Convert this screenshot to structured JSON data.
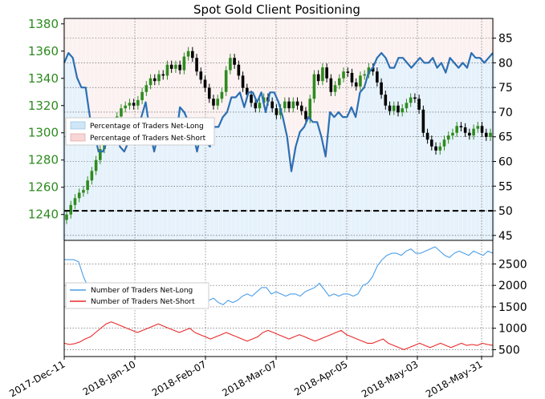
{
  "chart_data": [
    {
      "type": "candlestick",
      "title": "Spot Gold Client Positioning",
      "left_axis": {
        "ticks": [
          1240,
          1260,
          1280,
          1300,
          1320,
          1340,
          1360,
          1380
        ],
        "range": [
          1221,
          1384
        ]
      },
      "right_axis": {
        "ticks": [
          45,
          50,
          55,
          60,
          65,
          70,
          75,
          80,
          85
        ],
        "range": [
          44,
          89
        ]
      },
      "x_ticks": [
        "2017-Dec-11",
        "2018-Jan-10",
        "2018-Feb-07",
        "2018-Mar-07",
        "2018-Apr-05",
        "2018-May-03",
        "2018-May-31"
      ],
      "legend": [
        "Percentage of Traders Net-Long",
        "Percentage of Traders Net-Short"
      ],
      "reference_line": 50,
      "price_close": [
        1240,
        1247,
        1252,
        1256,
        1258,
        1265,
        1272,
        1280,
        1288,
        1295,
        1302,
        1308,
        1312,
        1318,
        1320,
        1322,
        1320,
        1324,
        1330,
        1335,
        1340,
        1338,
        1343,
        1342,
        1350,
        1347,
        1350,
        1346,
        1356,
        1360,
        1355,
        1345,
        1339,
        1333,
        1325,
        1320,
        1325,
        1330,
        1346,
        1355,
        1350,
        1342,
        1333,
        1328,
        1322,
        1318,
        1322,
        1326,
        1323,
        1318,
        1313,
        1318,
        1323,
        1318,
        1323,
        1320,
        1316,
        1310,
        1325,
        1343,
        1338,
        1348,
        1340,
        1330,
        1335,
        1340,
        1345,
        1344,
        1337,
        1334,
        1342,
        1343,
        1348,
        1345,
        1337,
        1328,
        1320,
        1316,
        1320,
        1315,
        1318,
        1322,
        1326,
        1325,
        1317,
        1300,
        1295,
        1290,
        1287,
        1290,
        1295,
        1298,
        1300,
        1305,
        1304,
        1300,
        1298,
        1303,
        1305,
        1300,
        1297,
        1300
      ],
      "pct_net_long": [
        80,
        82,
        81,
        77,
        75,
        75,
        69,
        66,
        62,
        62,
        64,
        68,
        68,
        63,
        62,
        64,
        66,
        67,
        69,
        72,
        66,
        62,
        66,
        65,
        65,
        64,
        64,
        71,
        70,
        68,
        66,
        62,
        66,
        64,
        63,
        67,
        67,
        69,
        70,
        73,
        73,
        74,
        71,
        74,
        74,
        72,
        74,
        70,
        74,
        74,
        72,
        69,
        65,
        58,
        63,
        66,
        67,
        69,
        68,
        68,
        65,
        61,
        70,
        69,
        70,
        69,
        69,
        71,
        69,
        74,
        75,
        78,
        79,
        81,
        82,
        81,
        79,
        79,
        81,
        81,
        80,
        79,
        80,
        81,
        80,
        80,
        81,
        79,
        80,
        78,
        81,
        80,
        79,
        80,
        79,
        82,
        81,
        81,
        80,
        81,
        82
      ],
      "traders_net_long": [
        2600,
        2600,
        2600,
        2550,
        2200,
        1950,
        1800,
        1700,
        1650,
        1600,
        1600,
        1650,
        1600,
        1700,
        1800,
        1750,
        1700,
        1650,
        1600,
        1550,
        1650,
        1700,
        1650,
        1600,
        1600,
        1650,
        1600,
        1650,
        1600,
        1550,
        1650,
        1700,
        1600,
        1550,
        1650,
        1600,
        1650,
        1750,
        1800,
        1750,
        1850,
        1950,
        1950,
        1800,
        1850,
        1800,
        1750,
        1800,
        1800,
        1750,
        1850,
        1900,
        1950,
        2050,
        1900,
        1750,
        1800,
        1750,
        1800,
        1800,
        1750,
        1800,
        2000,
        2050,
        2200,
        2450,
        2600,
        2700,
        2750,
        2750,
        2700,
        2800,
        2850,
        2750,
        2750,
        2800,
        2850,
        2900,
        2800,
        2700,
        2650,
        2750,
        2800,
        2750,
        2700,
        2800,
        2750,
        2700,
        2800,
        2750
      ],
      "traders_net_short": [
        650,
        620,
        640,
        680,
        750,
        800,
        900,
        1000,
        1100,
        1150,
        1100,
        1050,
        1000,
        950,
        900,
        950,
        1000,
        1050,
        1100,
        1050,
        1000,
        950,
        900,
        950,
        1000,
        900,
        850,
        800,
        750,
        800,
        850,
        900,
        850,
        800,
        750,
        700,
        750,
        800,
        900,
        950,
        900,
        850,
        800,
        750,
        800,
        850,
        800,
        750,
        700,
        750,
        800,
        850,
        900,
        950,
        850,
        800,
        750,
        700,
        650,
        650,
        700,
        750,
        650,
        600,
        550,
        500,
        550,
        600,
        650,
        600,
        550,
        600,
        650,
        600,
        550,
        600,
        650,
        600,
        620,
        600,
        650,
        620,
        600
      ]
    },
    {
      "type": "line",
      "legend": [
        "Number of Traders Net-Long",
        "Number of Traders Net-Short"
      ],
      "right_axis": {
        "ticks": [
          500,
          1000,
          1500,
          2000,
          2500
        ],
        "range": [
          340,
          3050
        ]
      }
    }
  ],
  "colors": {
    "candle_up": "#2e8b1f",
    "candle_down": "#000000",
    "pct_line": "#2c6fb3",
    "net_long_line": "#4a9ee8",
    "net_short_line": "#e82a2a",
    "long_fill": "#cfe6f7",
    "short_fill": "#f7d6d6",
    "left_tick_color": "#2e8b1f"
  }
}
